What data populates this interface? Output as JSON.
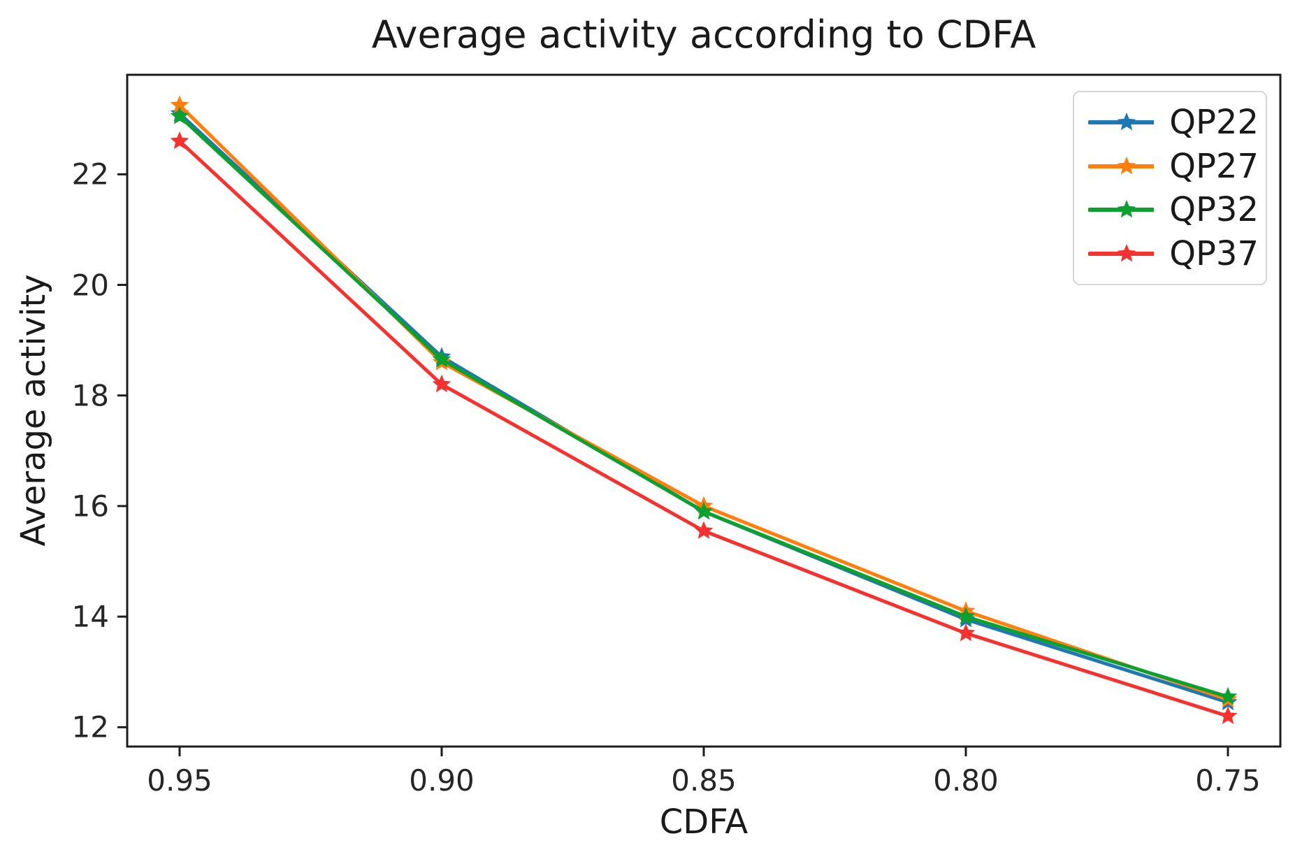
{
  "chart_data": {
    "type": "line",
    "title": "Average activity according to CDFA",
    "xlabel": "CDFA",
    "ylabel": "Average activity",
    "x": [
      0.95,
      0.9,
      0.85,
      0.8,
      0.75
    ],
    "x_tick_labels": [
      "0.95",
      "0.90",
      "0.85",
      "0.80",
      "0.75"
    ],
    "y_ticks": [
      12,
      14,
      16,
      18,
      20,
      22
    ],
    "y_tick_labels": [
      "12",
      "14",
      "16",
      "18",
      "20",
      "22"
    ],
    "xlim": [
      0.96,
      0.74
    ],
    "x_axis_reversed": true,
    "ylim": [
      11.65,
      23.8
    ],
    "grid": false,
    "marker": "star",
    "legend_position": "upper right",
    "series": [
      {
        "name": "QP22",
        "color": "#1f77b4",
        "values": [
          23.1,
          18.7,
          15.9,
          13.95,
          12.45
        ]
      },
      {
        "name": "QP27",
        "color": "#ff7f0e",
        "values": [
          23.25,
          18.6,
          16.0,
          14.1,
          12.5
        ]
      },
      {
        "name": "QP32",
        "color": "#0ca12e",
        "values": [
          23.05,
          18.65,
          15.9,
          14.0,
          12.55
        ]
      },
      {
        "name": "QP37",
        "color": "#f5322f",
        "values": [
          22.6,
          18.2,
          15.55,
          13.7,
          12.2
        ]
      }
    ],
    "colors": {
      "axis": "#1c1c1c",
      "tick_text": "#262626",
      "title_text": "#1a1a1a"
    }
  }
}
